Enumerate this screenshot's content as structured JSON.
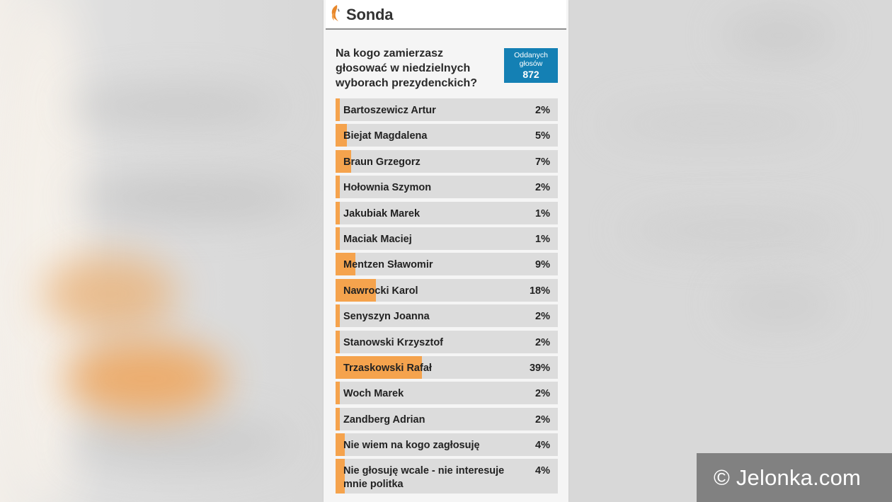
{
  "colors": {
    "accent_fill": "#f5a34d",
    "badge_bg": "#1480b4",
    "option_bg": "#dcdcdc",
    "watermark_bg": "#6e6e6e"
  },
  "widget": {
    "logo_icon": "flame-logo-icon",
    "title": "Sonda",
    "question": "Na kogo zamierzasz głosować w niedzielnych wyborach prezydenckich?",
    "votes_label": "Oddanych głosów",
    "votes_count": "872"
  },
  "options": [
    {
      "label": "Bartoszewicz Artur",
      "pct": "2%",
      "value": 2
    },
    {
      "label": "Biejat Magdalena",
      "pct": "5%",
      "value": 5
    },
    {
      "label": "Braun Grzegorz",
      "pct": "7%",
      "value": 7
    },
    {
      "label": "Hołownia Szymon",
      "pct": "2%",
      "value": 2
    },
    {
      "label": "Jakubiak Marek",
      "pct": "1%",
      "value": 1
    },
    {
      "label": "Maciak Maciej",
      "pct": "1%",
      "value": 1
    },
    {
      "label": "Mentzen Sławomir",
      "pct": "9%",
      "value": 9
    },
    {
      "label": "Nawrocki Karol",
      "pct": "18%",
      "value": 18
    },
    {
      "label": "Senyszyn Joanna",
      "pct": "2%",
      "value": 2
    },
    {
      "label": "Stanowski Krzysztof",
      "pct": "2%",
      "value": 2
    },
    {
      "label": "Trzaskowski Rafał",
      "pct": "39%",
      "value": 39
    },
    {
      "label": "Woch Marek",
      "pct": "2%",
      "value": 2
    },
    {
      "label": "Zandberg Adrian",
      "pct": "2%",
      "value": 2
    },
    {
      "label": "Nie wiem na kogo zagłosuję",
      "pct": "4%",
      "value": 4
    },
    {
      "label": "Nie głosuję wcale - nie interesuje mnie politka",
      "pct": "4%",
      "value": 4
    }
  ],
  "watermark": "© Jelonka.com"
}
